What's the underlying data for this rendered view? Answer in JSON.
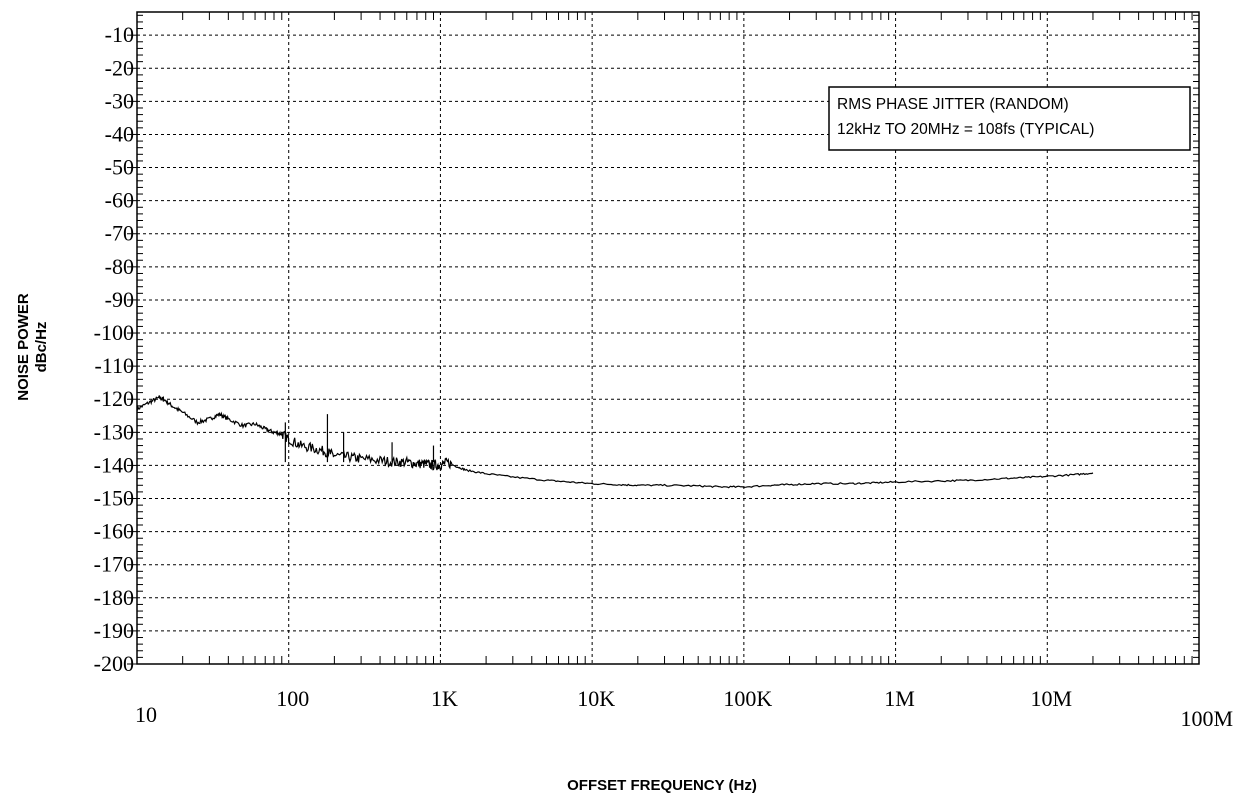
{
  "chart_data": {
    "type": "line",
    "title": "",
    "xlabel": "OFFSET FREQUENCY (Hz)",
    "ylabel_lines": [
      "NOISE POWER",
      "dBc/Hz"
    ],
    "x_scale": "log",
    "xlim": [
      10,
      100000000
    ],
    "ylim": [
      -200,
      -3
    ],
    "x_ticks": [
      {
        "value": 10,
        "label": "10"
      },
      {
        "value": 100,
        "label": "100"
      },
      {
        "value": 1000,
        "label": "1K"
      },
      {
        "value": 10000,
        "label": "10K"
      },
      {
        "value": 100000,
        "label": "100K"
      },
      {
        "value": 1000000,
        "label": "1M"
      },
      {
        "value": 10000000,
        "label": "10M"
      },
      {
        "value": 100000000,
        "label": "100M"
      }
    ],
    "y_ticks": [
      -10,
      -20,
      -30,
      -40,
      -50,
      -60,
      -70,
      -80,
      -90,
      -100,
      -110,
      -120,
      -130,
      -140,
      -150,
      -160,
      -170,
      -180,
      -190,
      -200
    ],
    "grid": true,
    "annotation": {
      "lines": [
        "RMS PHASE JITTER (RANDOM)",
        "12kHz TO 20MHz = 108fs (TYPICAL)"
      ],
      "placement": "top-right"
    },
    "series": [
      {
        "color": "#000000",
        "x": [
          10,
          12,
          14,
          15,
          17,
          20,
          25,
          30,
          35,
          40,
          50,
          60,
          70,
          80,
          90,
          100,
          120,
          150,
          180,
          200,
          250,
          300,
          400,
          500,
          600,
          700,
          800,
          900,
          1000,
          1100,
          1300,
          1500,
          2000,
          3000,
          5000,
          7000,
          10000,
          15000,
          20000,
          30000,
          50000,
          70000,
          100000,
          150000,
          200000,
          300000,
          500000,
          700000,
          1000000,
          2000000,
          3000000,
          5000000,
          7000000,
          10000000,
          15000000,
          20000000
        ],
        "y": [
          -123,
          -121,
          -119.5,
          -120,
          -122,
          -124,
          -127,
          -126,
          -124.5,
          -126,
          -128,
          -127.5,
          -129,
          -130,
          -130.5,
          -132,
          -134,
          -135,
          -136,
          -137,
          -137.5,
          -138,
          -138.5,
          -139,
          -139,
          -139.5,
          -139.5,
          -140,
          -140,
          -139,
          -140.5,
          -141.5,
          -142.5,
          -143.5,
          -144.5,
          -145,
          -145.5,
          -145.8,
          -146,
          -146,
          -146.2,
          -146.5,
          -146.5,
          -146,
          -145.8,
          -145.5,
          -145.5,
          -145.3,
          -145,
          -144.7,
          -144.5,
          -144,
          -143.7,
          -143.3,
          -142.8,
          -142.3
        ]
      }
    ],
    "spurs": [
      {
        "x": 95,
        "y": -127
      },
      {
        "x": 180,
        "y": -124.5
      },
      {
        "x": 230,
        "y": -130
      },
      {
        "x": 480,
        "y": -133
      },
      {
        "x": 900,
        "y": -134
      }
    ]
  }
}
